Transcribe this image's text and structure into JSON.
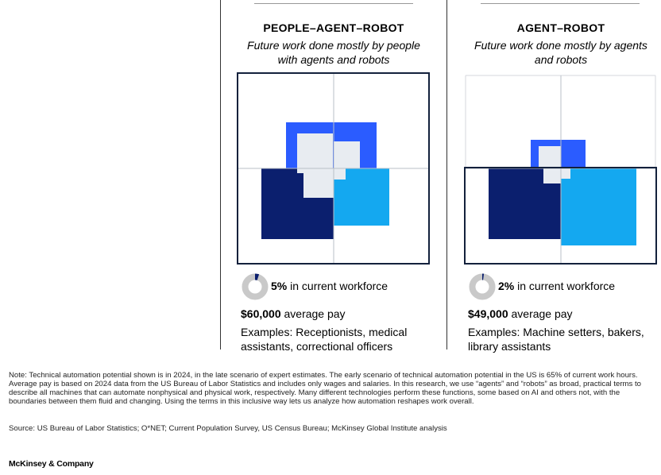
{
  "chart_data": [
    {
      "type": "other",
      "title": "PEOPLE–AGENT–ROBOT",
      "subtitle": "Future work done mostly by people with agents and robots",
      "workforce_share_pct": 5,
      "workforce_label": "5%",
      "workforce_text": "in current workforce",
      "pay_value": "$60,000",
      "pay_text": "average pay",
      "examples": "Examples: Receptionists, medical assistants, correctional officers"
    },
    {
      "type": "other",
      "title": "AGENT–ROBOT",
      "subtitle": "Future work done mostly by agents and robots",
      "workforce_share_pct": 2,
      "workforce_label": "2%",
      "workforce_text": "in current workforce",
      "pay_value": "$49,000",
      "pay_text": "average pay",
      "examples": "Examples: Machine setters, bakers, library assistants"
    }
  ],
  "footer": {
    "note": "Note: Technical automation potential shown is in 2024, in the late scenario of expert estimates. The early scenario of technical automation potential in the US is 65% of current work hours. Average pay is based on 2024 data from the US Bureau of Labor Statistics and includes only wages and salaries. In this research, we use “agents” and “robots” as broad, practical terms to describe all machines that can automate nonphysical and physical work, respectively. Many different technologies perform these functions, some based on AI and others not, with the boundaries between them fluid and changing. Using the terms in this inclusive way lets us analyze how automation reshapes work overall.",
    "source": "Source: US Bureau of Labor Statistics; O*NET; Current Population Survey, US Census Bureau; McKinsey Global Institute analysis",
    "brand": "McKinsey & Company"
  },
  "colors": {
    "navy": "#0b1f6e",
    "royal": "#2b5cff",
    "sky": "#14a8f0",
    "pale": "#e8ecf1",
    "frame": "#13213c",
    "grid": "#b9bfc7",
    "donut_bg": "#c9c9c9"
  }
}
